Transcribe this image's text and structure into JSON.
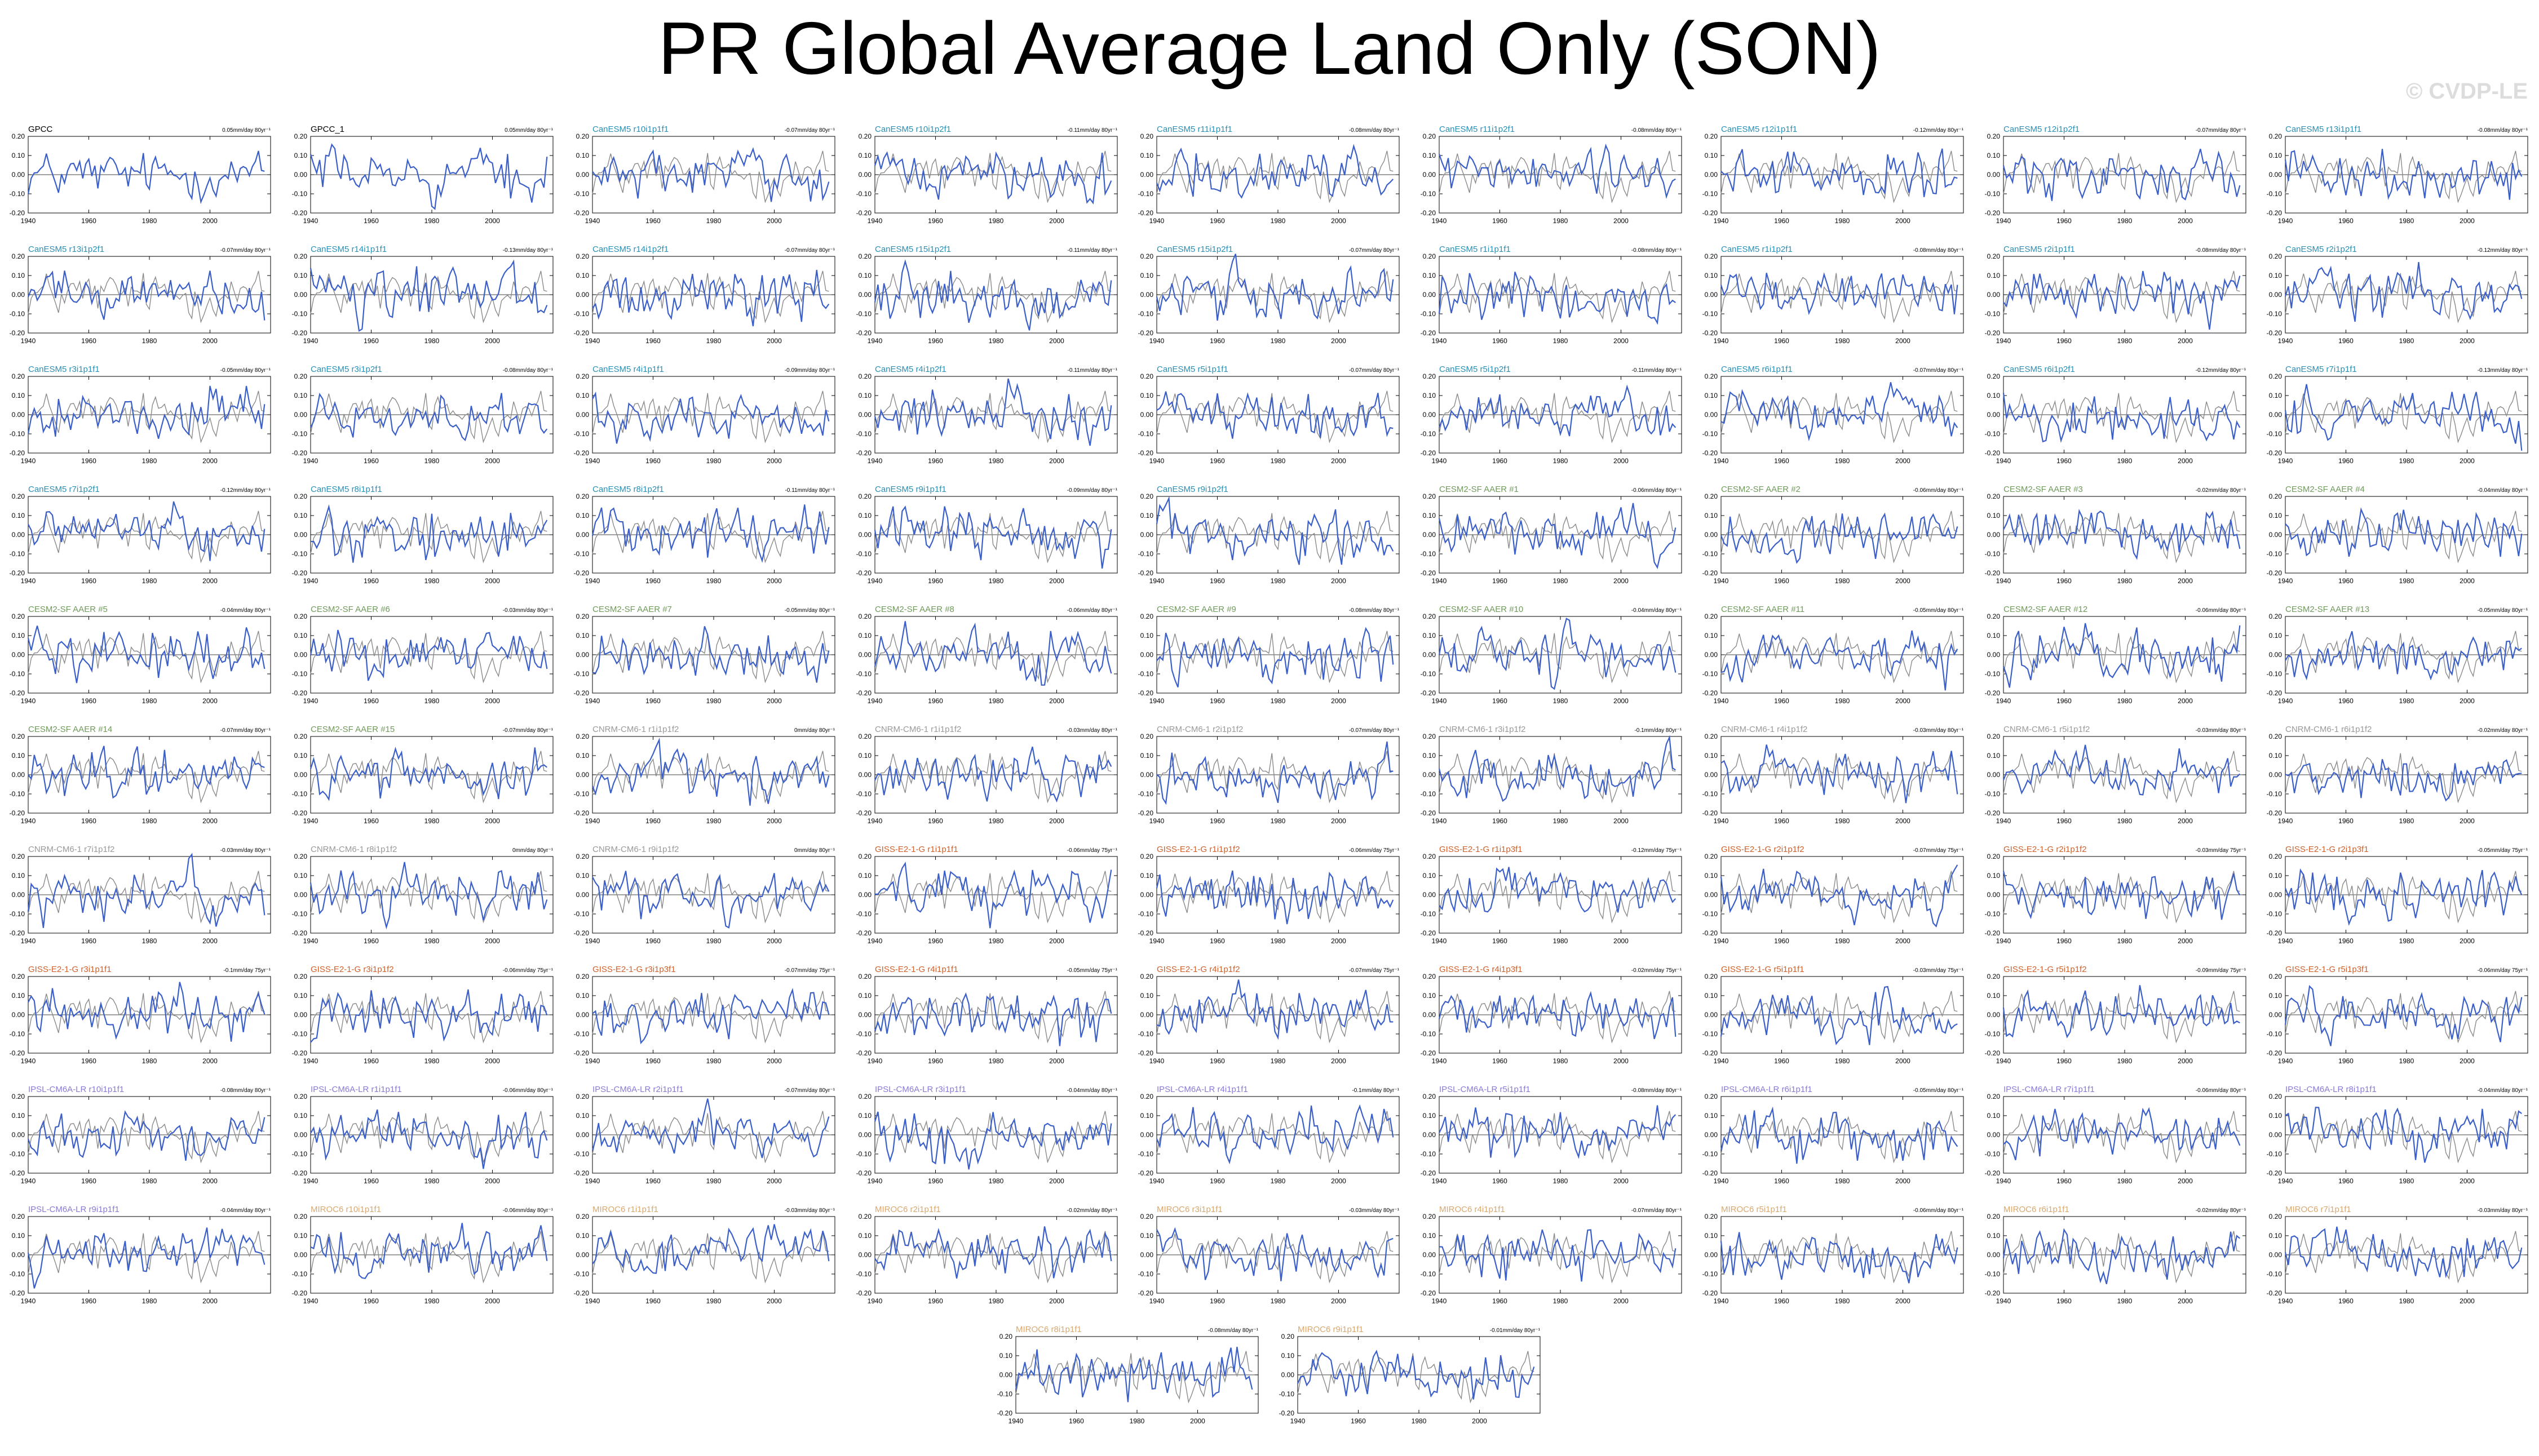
{
  "title": "PR Global Average Land Only (SON)",
  "watermark": "© CVDP-LE",
  "colors": {
    "obs_line": "#3b5fc9",
    "ensemble_line": "#3b5fc9",
    "obs_ghost_line": "#8a8a8a",
    "title_obs": "#000000",
    "title_CanESM5": "#2a8fb5",
    "title_CESM2-SF AAER": "#6f9a5a",
    "title_CNRM-CM6-1": "#9a9a9a",
    "title_GISS-E2-1-G": "#d0602a",
    "title_IPSL-CM6A-LR": "#8a7ad6",
    "title_MIROC6": "#d9a870"
  },
  "chart_data": {
    "type": "line",
    "xlim": [
      1940,
      2020
    ],
    "ylim": [
      -0.2,
      0.2
    ],
    "x_ticks": [
      "1940",
      "1960",
      "1980",
      "2000"
    ],
    "y_ticks": [
      "0.20",
      "0.10",
      "0.00",
      "-0.10",
      "-0.20"
    ],
    "panels": [
      {
        "title": "GPCC",
        "trend": "0.05mm/day 80yr⁻¹",
        "group": "obs"
      },
      {
        "title": "GPCC_1",
        "trend": "0.05mm/day 80yr⁻¹",
        "group": "obs"
      },
      {
        "title": "CanESM5 r10i1p1f1",
        "trend": "-0.07mm/day 80yr⁻¹",
        "group": "CanESM5"
      },
      {
        "title": "CanESM5 r10i1p2f1",
        "trend": "-0.11mm/day 80yr⁻¹",
        "group": "CanESM5"
      },
      {
        "title": "CanESM5 r11i1p1f1",
        "trend": "-0.08mm/day 80yr⁻¹",
        "group": "CanESM5"
      },
      {
        "title": "CanESM5 r11i1p2f1",
        "trend": "-0.08mm/day 80yr⁻¹",
        "group": "CanESM5"
      },
      {
        "title": "CanESM5 r12i1p1f1",
        "trend": "-0.12mm/day 80yr⁻¹",
        "group": "CanESM5"
      },
      {
        "title": "CanESM5 r12i1p2f1",
        "trend": "-0.07mm/day 80yr⁻¹",
        "group": "CanESM5"
      },
      {
        "title": "CanESM5 r13i1p1f1",
        "trend": "-0.08mm/day 80yr⁻¹",
        "group": "CanESM5"
      },
      {
        "title": "CanESM5 r13i1p2f1",
        "trend": "-0.07mm/day 80yr⁻¹",
        "group": "CanESM5"
      },
      {
        "title": "CanESM5 r14i1p1f1",
        "trend": "-0.13mm/day 80yr⁻¹",
        "group": "CanESM5"
      },
      {
        "title": "CanESM5 r14i1p2f1",
        "trend": "-0.07mm/day 80yr⁻¹",
        "group": "CanESM5"
      },
      {
        "title": "CanESM5 r15i1p2f1",
        "trend": "-0.11mm/day 80yr⁻¹",
        "group": "CanESM5"
      },
      {
        "title": "CanESM5 r15i1p2f1",
        "trend": "-0.07mm/day 80yr⁻¹",
        "group": "CanESM5"
      },
      {
        "title": "CanESM5 r1i1p1f1",
        "trend": "-0.08mm/day 80yr⁻¹",
        "group": "CanESM5"
      },
      {
        "title": "CanESM5 r1i1p2f1",
        "trend": "-0.08mm/day 80yr⁻¹",
        "group": "CanESM5"
      },
      {
        "title": "CanESM5 r2i1p1f1",
        "trend": "-0.08mm/day 80yr⁻¹",
        "group": "CanESM5"
      },
      {
        "title": "CanESM5 r2i1p2f1",
        "trend": "-0.12mm/day 80yr⁻¹",
        "group": "CanESM5"
      },
      {
        "title": "CanESM5 r3i1p1f1",
        "trend": "-0.05mm/day 80yr⁻¹",
        "group": "CanESM5"
      },
      {
        "title": "CanESM5 r3i1p2f1",
        "trend": "-0.08mm/day 80yr⁻¹",
        "group": "CanESM5"
      },
      {
        "title": "CanESM5 r4i1p1f1",
        "trend": "-0.09mm/day 80yr⁻¹",
        "group": "CanESM5"
      },
      {
        "title": "CanESM5 r4i1p2f1",
        "trend": "-0.11mm/day 80yr⁻¹",
        "group": "CanESM5"
      },
      {
        "title": "CanESM5 r5i1p1f1",
        "trend": "-0.07mm/day 80yr⁻¹",
        "group": "CanESM5"
      },
      {
        "title": "CanESM5 r5i1p2f1",
        "trend": "-0.11mm/day 80yr⁻¹",
        "group": "CanESM5"
      },
      {
        "title": "CanESM5 r6i1p1f1",
        "trend": "-0.07mm/day 80yr⁻¹",
        "group": "CanESM5"
      },
      {
        "title": "CanESM5 r6i1p2f1",
        "trend": "-0.12mm/day 80yr⁻¹",
        "group": "CanESM5"
      },
      {
        "title": "CanESM5 r7i1p1f1",
        "trend": "-0.13mm/day 80yr⁻¹",
        "group": "CanESM5"
      },
      {
        "title": "CanESM5 r7i1p2f1",
        "trend": "-0.12mm/day 80yr⁻¹",
        "group": "CanESM5"
      },
      {
        "title": "CanESM5 r8i1p1f1",
        "trend": "",
        "group": "CanESM5"
      },
      {
        "title": "CanESM5 r8i1p2f1",
        "trend": "-0.11mm/day 80yr⁻¹",
        "group": "CanESM5"
      },
      {
        "title": "CanESM5 r9i1p1f1",
        "trend": "-0.09mm/day 80yr⁻¹",
        "group": "CanESM5"
      },
      {
        "title": "CanESM5 r9i1p2f1",
        "trend": "",
        "group": "CanESM5"
      },
      {
        "title": "CESM2-SF AAER #1",
        "trend": "-0.06mm/day 80yr⁻¹",
        "group": "CESM2-SF AAER"
      },
      {
        "title": "CESM2-SF AAER #2",
        "trend": "-0.06mm/day 80yr⁻¹",
        "group": "CESM2-SF AAER"
      },
      {
        "title": "CESM2-SF AAER #3",
        "trend": "-0.02mm/day 80yr⁻¹",
        "group": "CESM2-SF AAER"
      },
      {
        "title": "CESM2-SF AAER #4",
        "trend": "-0.04mm/day 80yr⁻¹",
        "group": "CESM2-SF AAER"
      },
      {
        "title": "CESM2-SF AAER #5",
        "trend": "-0.04mm/day 80yr⁻¹",
        "group": "CESM2-SF AAER"
      },
      {
        "title": "CESM2-SF AAER #6",
        "trend": "-0.03mm/day 80yr⁻¹",
        "group": "CESM2-SF AAER"
      },
      {
        "title": "CESM2-SF AAER #7",
        "trend": "-0.05mm/day 80yr⁻¹",
        "group": "CESM2-SF AAER"
      },
      {
        "title": "CESM2-SF AAER #8",
        "trend": "-0.06mm/day 80yr⁻¹",
        "group": "CESM2-SF AAER"
      },
      {
        "title": "CESM2-SF AAER #9",
        "trend": "-0.08mm/day 80yr⁻¹",
        "group": "CESM2-SF AAER"
      },
      {
        "title": "CESM2-SF AAER #10",
        "trend": "-0.04mm/day 80yr⁻¹",
        "group": "CESM2-SF AAER"
      },
      {
        "title": "CESM2-SF AAER #11",
        "trend": "-0.05mm/day 80yr⁻¹",
        "group": "CESM2-SF AAER"
      },
      {
        "title": "CESM2-SF AAER #12",
        "trend": "-0.06mm/day 80yr⁻¹",
        "group": "CESM2-SF AAER"
      },
      {
        "title": "CESM2-SF AAER #13",
        "trend": "-0.05mm/day 80yr⁻¹",
        "group": "CESM2-SF AAER"
      },
      {
        "title": "CESM2-SF AAER #14",
        "trend": "-0.07mm/day 80yr⁻¹",
        "group": "CESM2-SF AAER"
      },
      {
        "title": "CESM2-SF AAER #15",
        "trend": "-0.07mm/day 80yr⁻¹",
        "group": "CESM2-SF AAER"
      },
      {
        "title": "CNRM-CM6-1 r1i1p1f2",
        "trend": "0mm/day 80yr⁻¹",
        "group": "CNRM-CM6-1"
      },
      {
        "title": "CNRM-CM6-1 r1i1p1f2",
        "trend": "-0.03mm/day 80yr⁻¹",
        "group": "CNRM-CM6-1"
      },
      {
        "title": "CNRM-CM6-1 r2i1p1f2",
        "trend": "-0.07mm/day 80yr⁻¹",
        "group": "CNRM-CM6-1"
      },
      {
        "title": "CNRM-CM6-1 r3i1p1f2",
        "trend": "-0.1mm/day 80yr⁻¹",
        "group": "CNRM-CM6-1"
      },
      {
        "title": "CNRM-CM6-1 r4i1p1f2",
        "trend": "-0.03mm/day 80yr⁻¹",
        "group": "CNRM-CM6-1"
      },
      {
        "title": "CNRM-CM6-1 r5i1p1f2",
        "trend": "-0.03mm/day 80yr⁻¹",
        "group": "CNRM-CM6-1"
      },
      {
        "title": "CNRM-CM6-1 r6i1p1f2",
        "trend": "-0.02mm/day 80yr⁻¹",
        "group": "CNRM-CM6-1"
      },
      {
        "title": "CNRM-CM6-1 r7i1p1f2",
        "trend": "-0.03mm/day 80yr⁻¹",
        "group": "CNRM-CM6-1"
      },
      {
        "title": "CNRM-CM6-1 r8i1p1f2",
        "trend": "0mm/day 80yr⁻¹",
        "group": "CNRM-CM6-1"
      },
      {
        "title": "CNRM-CM6-1 r9i1p1f2",
        "trend": "0mm/day 80yr⁻¹",
        "group": "CNRM-CM6-1"
      },
      {
        "title": "GISS-E2-1-G r1i1p1f1",
        "trend": "-0.06mm/day 75yr⁻¹",
        "group": "GISS-E2-1-G"
      },
      {
        "title": "GISS-E2-1-G r1i1p1f2",
        "trend": "-0.06mm/day 75yr⁻¹",
        "group": "GISS-E2-1-G"
      },
      {
        "title": "GISS-E2-1-G r1i1p3f1",
        "trend": "-0.12mm/day 75yr⁻¹",
        "group": "GISS-E2-1-G"
      },
      {
        "title": "GISS-E2-1-G r2i1p1f2",
        "trend": "-0.07mm/day 75yr⁻¹",
        "group": "GISS-E2-1-G"
      },
      {
        "title": "GISS-E2-1-G r2i1p1f2",
        "trend": "-0.03mm/day 75yr⁻¹",
        "group": "GISS-E2-1-G"
      },
      {
        "title": "GISS-E2-1-G r2i1p3f1",
        "trend": "-0.05mm/day 75yr⁻¹",
        "group": "GISS-E2-1-G"
      },
      {
        "title": "GISS-E2-1-G r3i1p1f1",
        "trend": "-0.1mm/day 75yr⁻¹",
        "group": "GISS-E2-1-G"
      },
      {
        "title": "GISS-E2-1-G r3i1p1f2",
        "trend": "-0.06mm/day 75yr⁻¹",
        "group": "GISS-E2-1-G"
      },
      {
        "title": "GISS-E2-1-G r3i1p3f1",
        "trend": "-0.07mm/day 75yr⁻¹",
        "group": "GISS-E2-1-G"
      },
      {
        "title": "GISS-E2-1-G r4i1p1f1",
        "trend": "-0.05mm/day 75yr⁻¹",
        "group": "GISS-E2-1-G"
      },
      {
        "title": "GISS-E2-1-G r4i1p1f2",
        "trend": "-0.07mm/day 75yr⁻¹",
        "group": "GISS-E2-1-G"
      },
      {
        "title": "GISS-E2-1-G r4i1p3f1",
        "trend": "-0.02mm/day 75yr⁻¹",
        "group": "GISS-E2-1-G"
      },
      {
        "title": "GISS-E2-1-G r5i1p1f1",
        "trend": "-0.03mm/day 75yr⁻¹",
        "group": "GISS-E2-1-G"
      },
      {
        "title": "GISS-E2-1-G r5i1p1f2",
        "trend": "-0.09mm/day 75yr⁻¹",
        "group": "GISS-E2-1-G"
      },
      {
        "title": "GISS-E2-1-G r5i1p3f1",
        "trend": "-0.06mm/day 75yr⁻¹",
        "group": "GISS-E2-1-G"
      },
      {
        "title": "IPSL-CM6A-LR r10i1p1f1",
        "trend": "-0.08mm/day 80yr⁻¹",
        "group": "IPSL-CM6A-LR"
      },
      {
        "title": "IPSL-CM6A-LR r1i1p1f1",
        "trend": "-0.06mm/day 80yr⁻¹",
        "group": "IPSL-CM6A-LR"
      },
      {
        "title": "IPSL-CM6A-LR r2i1p1f1",
        "trend": "-0.07mm/day 80yr⁻¹",
        "group": "IPSL-CM6A-LR"
      },
      {
        "title": "IPSL-CM6A-LR r3i1p1f1",
        "trend": "-0.04mm/day 80yr⁻¹",
        "group": "IPSL-CM6A-LR"
      },
      {
        "title": "IPSL-CM6A-LR r4i1p1f1",
        "trend": "-0.1mm/day 80yr⁻¹",
        "group": "IPSL-CM6A-LR"
      },
      {
        "title": "IPSL-CM6A-LR r5i1p1f1",
        "trend": "-0.08mm/day 80yr⁻¹",
        "group": "IPSL-CM6A-LR"
      },
      {
        "title": "IPSL-CM6A-LR r6i1p1f1",
        "trend": "-0.05mm/day 80yr⁻¹",
        "group": "IPSL-CM6A-LR"
      },
      {
        "title": "IPSL-CM6A-LR r7i1p1f1",
        "trend": "-0.06mm/day 80yr⁻¹",
        "group": "IPSL-CM6A-LR"
      },
      {
        "title": "IPSL-CM6A-LR r8i1p1f1",
        "trend": "-0.04mm/day 80yr⁻¹",
        "group": "IPSL-CM6A-LR"
      },
      {
        "title": "IPSL-CM6A-LR r9i1p1f1",
        "trend": "-0.04mm/day 80yr⁻¹",
        "group": "IPSL-CM6A-LR"
      },
      {
        "title": "MIROC6 r10i1p1f1",
        "trend": "-0.06mm/day 80yr⁻¹",
        "group": "MIROC6"
      },
      {
        "title": "MIROC6 r1i1p1f1",
        "trend": "-0.03mm/day 80yr⁻¹",
        "group": "MIROC6"
      },
      {
        "title": "MIROC6 r2i1p1f1",
        "trend": "-0.02mm/day 80yr⁻¹",
        "group": "MIROC6"
      },
      {
        "title": "MIROC6 r3i1p1f1",
        "trend": "-0.03mm/day 80yr⁻¹",
        "group": "MIROC6"
      },
      {
        "title": "MIROC6 r4i1p1f1",
        "trend": "-0.07mm/day 80yr⁻¹",
        "group": "MIROC6"
      },
      {
        "title": "MIROC6 r5i1p1f1",
        "trend": "-0.06mm/day 80yr⁻¹",
        "group": "MIROC6"
      },
      {
        "title": "MIROC6 r6i1p1f1",
        "trend": "-0.02mm/day 80yr⁻¹",
        "group": "MIROC6"
      },
      {
        "title": "MIROC6 r7i1p1f1",
        "trend": "-0.03mm/day 80yr⁻¹",
        "group": "MIROC6"
      },
      {
        "title": "MIROC6 r8i1p1f1",
        "trend": "-0.08mm/day 80yr⁻¹",
        "group": "MIROC6"
      },
      {
        "title": "MIROC6 r9i1p1f1",
        "trend": "-0.01mm/day 80yr⁻¹",
        "group": "MIROC6"
      }
    ]
  }
}
